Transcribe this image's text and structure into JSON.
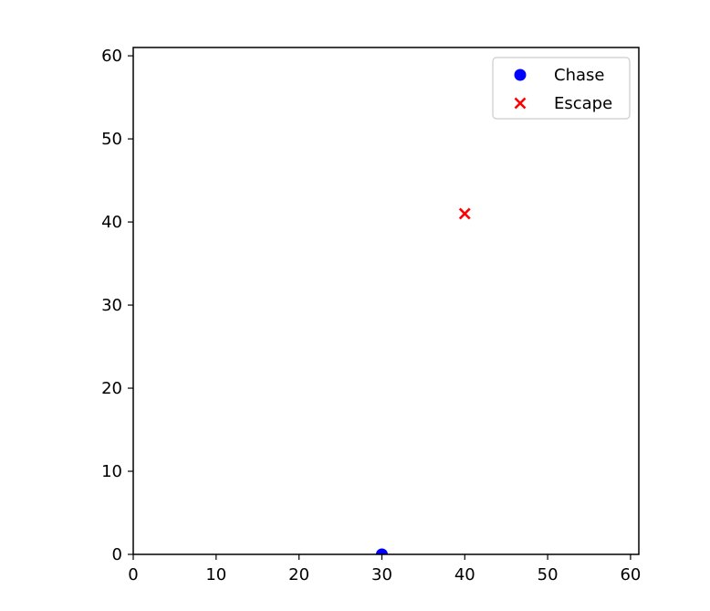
{
  "chart_data": {
    "type": "scatter",
    "title": "",
    "xlabel": "",
    "ylabel": "",
    "xlim": [
      0,
      61
    ],
    "ylim": [
      0,
      61
    ],
    "xticks": [
      0,
      10,
      20,
      30,
      40,
      50,
      60
    ],
    "yticks": [
      0,
      10,
      20,
      30,
      40,
      50,
      60
    ],
    "xtick_labels": [
      "0",
      "10",
      "20",
      "30",
      "40",
      "50",
      "60"
    ],
    "ytick_labels": [
      "0",
      "10",
      "20",
      "30",
      "40",
      "50",
      "60"
    ],
    "grid": false,
    "legend_position": "top-right",
    "series": [
      {
        "name": "Chase",
        "marker": "circle",
        "color": "#0000ff",
        "points": [
          {
            "x": 30,
            "y": 0
          }
        ]
      },
      {
        "name": "Escape",
        "marker": "x",
        "color": "#ff0000",
        "points": [
          {
            "x": 40,
            "y": 41
          }
        ]
      }
    ]
  }
}
